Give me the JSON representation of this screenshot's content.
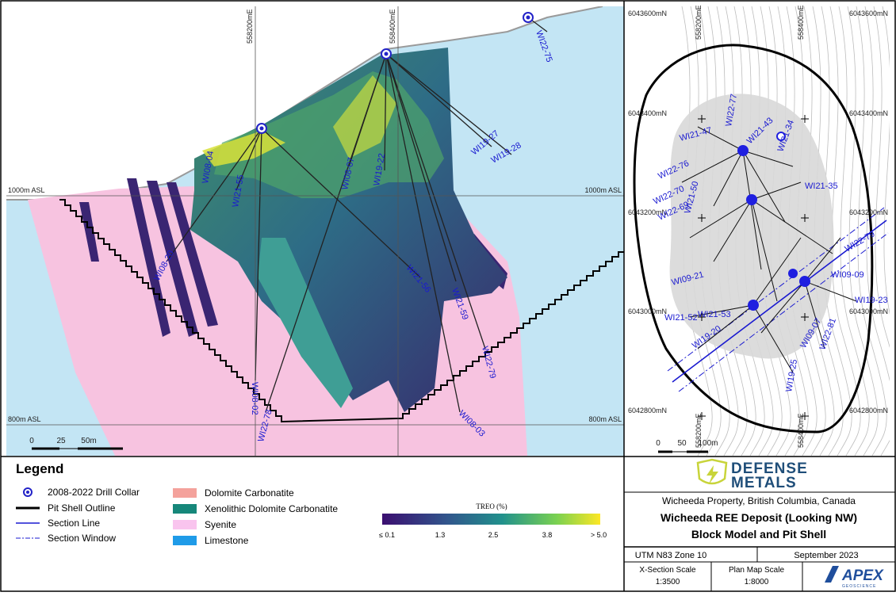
{
  "cross_section": {
    "eastings": [
      "558200mE",
      "558400mE"
    ],
    "elevations": [
      "1000m ASL",
      "800m ASL"
    ],
    "holes": [
      "WI22-75",
      "WI19-27",
      "WI19-28",
      "WI19-22",
      "WI08-07",
      "WI21-56",
      "WI21-59",
      "WI22-79",
      "WI08-03",
      "WI22-78",
      "WI08-02",
      "WI08-20",
      "WI21-55",
      "WI08-04"
    ],
    "scale_bar": [
      "0",
      "25",
      "50m"
    ]
  },
  "plan_map": {
    "northings": [
      "6043600mN",
      "6043400mN",
      "6043200mN",
      "6043000mN",
      "6042800mN"
    ],
    "eastings": [
      "558200mE",
      "558400mE"
    ],
    "holes": [
      "WI22-77",
      "WI21-43",
      "WI21-47",
      "WI21-34",
      "WI22-76",
      "WI21-35",
      "WI22-70",
      "WI22-69",
      "WI21-50",
      "WI22-79",
      "WI09-09",
      "WI09-21",
      "WI19-23",
      "WI21-52",
      "WI21-53",
      "WI19-20",
      "WI09-07",
      "WI22-81",
      "WI19-25"
    ],
    "scale_bar": [
      "0",
      "50",
      "100m"
    ]
  },
  "legend": {
    "title": "Legend",
    "symbols": [
      "2008-2022 Drill Collar",
      "Pit Shell Outline",
      "Section Line",
      "Section Window"
    ],
    "units": [
      {
        "name": "Dolomite Carbonatite",
        "color": "#f4a29c"
      },
      {
        "name": "Xenolithic Dolomite Carbonatite",
        "color": "#16877a"
      },
      {
        "name": "Syenite",
        "color": "#f9c4ee"
      },
      {
        "name": "Limestone",
        "color": "#1f9be8"
      }
    ],
    "colorbar_title": "TREO (%)",
    "colorbar_ticks": [
      "≤ 0.1",
      "1.3",
      "2.5",
      "3.8",
      "> 5.0"
    ]
  },
  "title_block": {
    "company": [
      "DEFENSE",
      "METALS"
    ],
    "property": "Wicheeda Property, British Columbia, Canada",
    "title": "Wicheeda REE Deposit (Looking NW)",
    "subtitle": "Block Model and Pit Shell",
    "projection": "UTM N83 Zone 10",
    "date": "September 2023",
    "xsection_scale_label": "X-Section Scale",
    "xsection_scale": "1:3500",
    "plan_scale_label": "Plan Map Scale",
    "plan_scale": "1:8000",
    "consultant": "APEX",
    "consultant_sub": "GEOSCIENCE"
  }
}
